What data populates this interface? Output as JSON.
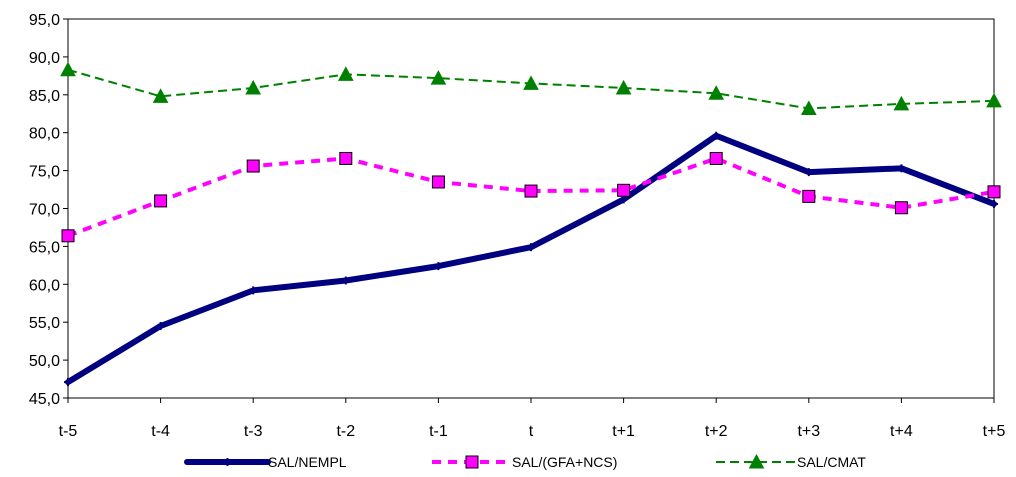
{
  "chart_data": {
    "type": "line",
    "title": "",
    "xlabel": "",
    "ylabel": "",
    "categories": [
      "t-5",
      "t-4",
      "t-3",
      "t-2",
      "t-1",
      "t",
      "t+1",
      "t+2",
      "t+3",
      "t+4",
      "t+5"
    ],
    "ylim": [
      45,
      95
    ],
    "ytick_labels": [
      "45,0",
      "50,0",
      "55,0",
      "60,0",
      "65,0",
      "70,0",
      "75,0",
      "80,0",
      "85,0",
      "90,0",
      "95,0"
    ],
    "grid": false,
    "legend_position": "bottom",
    "series": [
      {
        "name": "SAL/NEMPL",
        "color": "#000080",
        "line_style": "solid-thick",
        "marker": "plus",
        "values": [
          47.1,
          54.5,
          59.2,
          60.5,
          62.4,
          64.9,
          71.2,
          79.6,
          74.8,
          75.3,
          70.6
        ]
      },
      {
        "name": "SAL/(GFA+NCS)",
        "color": "#FF00FF",
        "line_style": "dashed",
        "marker": "square",
        "values": [
          66.4,
          71.0,
          75.6,
          76.6,
          73.5,
          72.3,
          72.4,
          76.6,
          71.6,
          70.1,
          72.2
        ]
      },
      {
        "name": "SAL/CMAT",
        "color": "#008000",
        "line_style": "dashed",
        "marker": "triangle",
        "values": [
          88.3,
          84.8,
          85.9,
          87.7,
          87.2,
          86.5,
          85.9,
          85.2,
          83.2,
          83.8,
          84.2
        ]
      }
    ]
  }
}
